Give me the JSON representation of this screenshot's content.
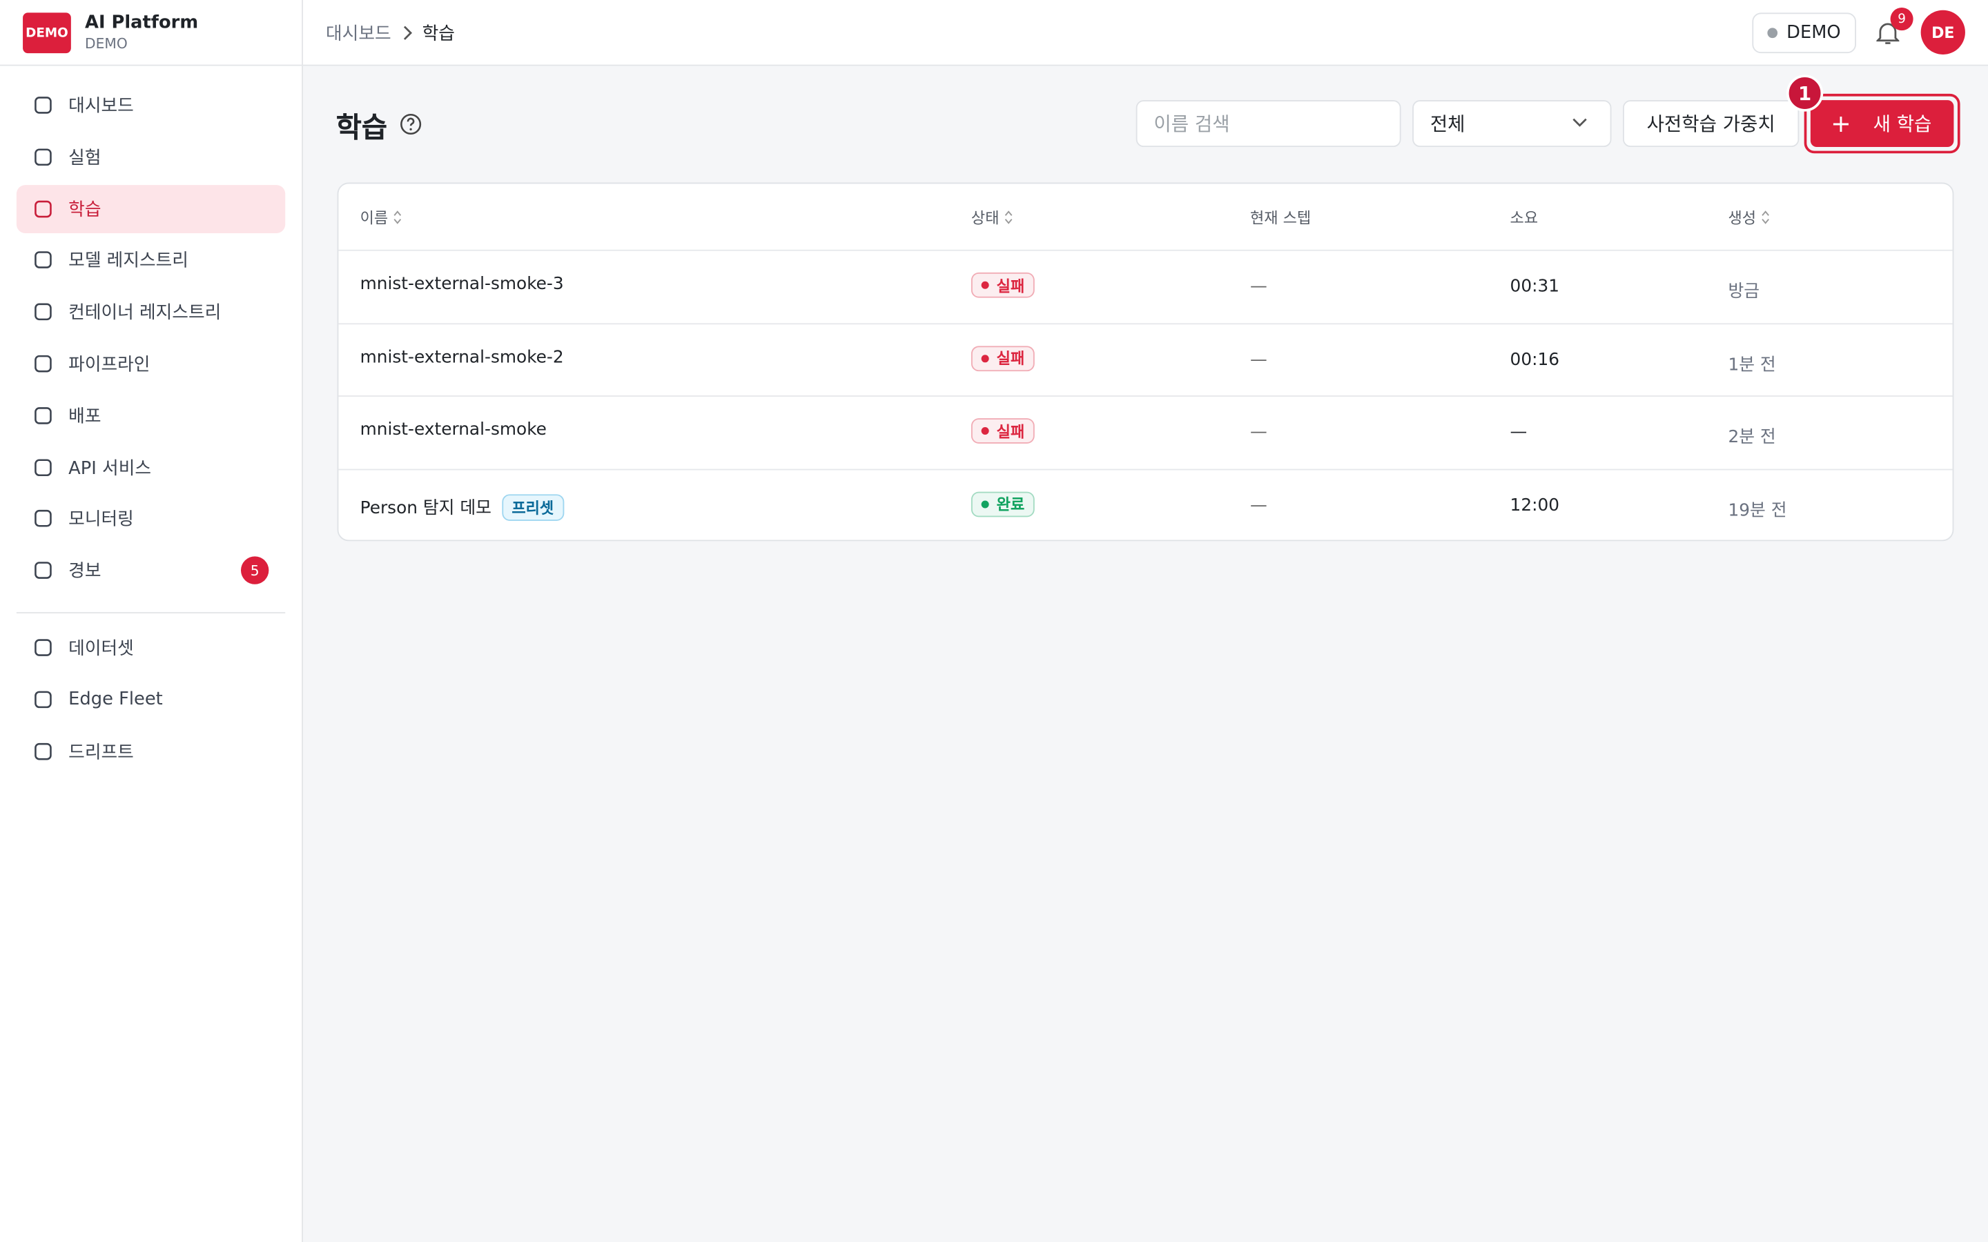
{
  "sidebar": {
    "logo": "DEMO",
    "brand": "AI Platform",
    "workspace": "DEMO",
    "nav": [
      {
        "label": "대시보드"
      },
      {
        "label": "실험"
      },
      {
        "label": "학습",
        "active": true
      },
      {
        "label": "모델 레지스트리"
      },
      {
        "label": "컨테이너 레지스트리"
      },
      {
        "label": "파이프라인"
      },
      {
        "label": "배포"
      },
      {
        "label": "API 서비스"
      },
      {
        "label": "모니터링"
      },
      {
        "label": "경보",
        "badge": "5"
      }
    ],
    "nav_secondary": [
      {
        "label": "데이터셋"
      },
      {
        "label": "Edge Fleet"
      },
      {
        "label": "드리프트"
      }
    ]
  },
  "header": {
    "breadcrumb": [
      "대시보드",
      "학습"
    ],
    "env": "DEMO",
    "notifications": "9",
    "avatar": "DE"
  },
  "page": {
    "title": "학습",
    "search_placeholder": "이름 검색",
    "filter": "전체",
    "pretrained_button": "사전학습 가중치",
    "new_button": "새 학습",
    "tour_step": "1"
  },
  "table": {
    "columns": [
      {
        "label": "이름",
        "sortable": true
      },
      {
        "label": "상태",
        "sortable": true
      },
      {
        "label": "현재 스텝",
        "sortable": false
      },
      {
        "label": "소요",
        "sortable": false
      },
      {
        "label": "생성",
        "sortable": true
      }
    ],
    "rows": [
      {
        "name": "mnist-external-smoke-3",
        "status": "실패",
        "status_color": "#dc2640",
        "step": "—",
        "duration": "00:31",
        "created": "방금"
      },
      {
        "name": "mnist-external-smoke-2",
        "status": "실패",
        "status_color": "#dc2640",
        "step": "—",
        "duration": "00:16",
        "created": "1분 전"
      },
      {
        "name": "mnist-external-smoke",
        "status": "실패",
        "status_color": "#dc2640",
        "step": "—",
        "duration": "—",
        "created": "2분 전"
      },
      {
        "name": "Person 탐지 데모",
        "tag": "프리셋",
        "status": "완료",
        "status_color": "#12a360",
        "step": "—",
        "duration": "12:00",
        "created": "19분 전"
      }
    ]
  }
}
